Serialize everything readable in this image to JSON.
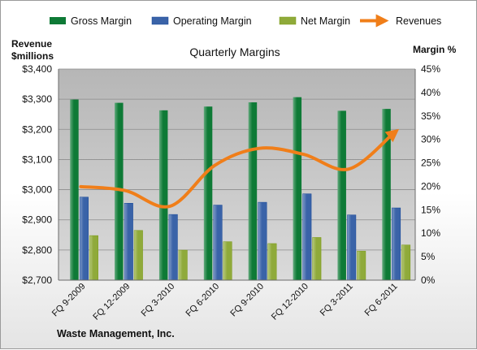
{
  "chart_data": {
    "type": "bar",
    "title": "Quarterly Margins",
    "footer": "Waste Management, Inc.",
    "ylabel_left": [
      "Revenue",
      "$millions"
    ],
    "ylabel_right": "Margin %",
    "categories": [
      "FQ 9-2009",
      "FQ 12-2009",
      "FQ 3-2010",
      "FQ 6-2010",
      "FQ 9-2010",
      "FQ 12-2010",
      "FQ 3-2011",
      "FQ 6-2011"
    ],
    "series": [
      {
        "name": "Gross Margin",
        "type": "bar",
        "axis": "right",
        "color": "#0e7a36",
        "values": [
          38.5,
          37.8,
          36.2,
          37.0,
          37.9,
          39.0,
          36.1,
          36.5
        ]
      },
      {
        "name": "Operating Margin",
        "type": "bar",
        "axis": "right",
        "color": "#3a63a8",
        "values": [
          17.7,
          16.4,
          14.0,
          16.0,
          16.6,
          18.4,
          13.9,
          15.4
        ]
      },
      {
        "name": "Net Margin",
        "type": "bar",
        "axis": "right",
        "color": "#8faa3a",
        "values": [
          9.5,
          10.6,
          6.4,
          8.2,
          7.8,
          9.1,
          6.2,
          7.5
        ]
      },
      {
        "name": "Revenues",
        "type": "line",
        "axis": "left",
        "color": "#f07e19",
        "values": [
          3010,
          2997,
          2945,
          3080,
          3137,
          3117,
          3068,
          3185
        ]
      }
    ],
    "y_left": {
      "min": 2700,
      "max": 3400,
      "ticks": [
        "$2,700",
        "$2,800",
        "$2,900",
        "$3,000",
        "$3,100",
        "$3,200",
        "$3,300",
        "$3,400"
      ]
    },
    "y_right": {
      "min": 0,
      "max": 45,
      "ticks": [
        "0%",
        "5%",
        "10%",
        "15%",
        "20%",
        "25%",
        "30%",
        "35%",
        "40%",
        "45%"
      ]
    },
    "legend_position": "top",
    "grid": true,
    "plot_background": "#c0c0c0"
  }
}
